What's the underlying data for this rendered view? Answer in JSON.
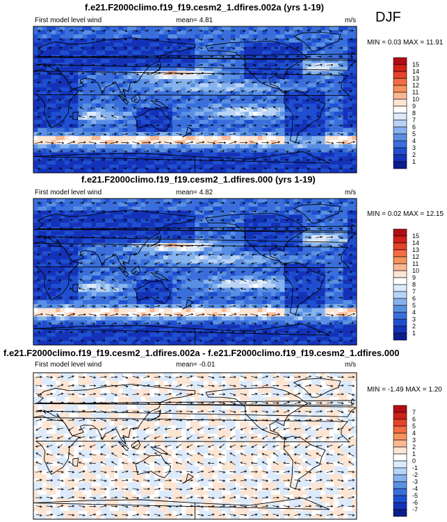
{
  "season": "DJF",
  "panels": [
    {
      "title": "f.e21.F2000climo.f19_f19.cesm2_1.dfires.002a (yrs 1-19)",
      "left_label": "First model level wind",
      "mean_text": "mean=   4.81",
      "units": "m/s",
      "minmax_text": "MIN =   0.03 MAX =  11.91",
      "field": "wind",
      "colorbar": {
        "labels": [
          "15",
          "14",
          "13",
          "12",
          "11",
          "10",
          "9",
          "8",
          "7",
          "6",
          "5",
          "4",
          "3",
          "2",
          "1"
        ],
        "colors": [
          "#b30d14",
          "#cf2116",
          "#e4432c",
          "#f46d43",
          "#f6925c",
          "#f9b995",
          "#fde5d4",
          "#ffffff",
          "#dceafb",
          "#b9d3f6",
          "#86b3ee",
          "#5a90e4",
          "#3a6fdb",
          "#1f4fd0",
          "#1432b8",
          "#0b1d8c"
        ]
      },
      "chart_data": {
        "type": "heatmap",
        "variable": "First model level wind",
        "units": "m/s",
        "mean": 4.81,
        "min": 0.03,
        "max": 11.91,
        "color_levels": [
          1,
          2,
          3,
          4,
          5,
          6,
          7,
          8,
          9,
          10,
          11,
          12,
          13,
          14,
          15
        ]
      }
    },
    {
      "title": "f.e21.F2000climo.f19_f19.cesm2_1.dfires.000 (yrs 1-19)",
      "left_label": "First model level wind",
      "mean_text": "mean=   4.82",
      "units": "m/s",
      "minmax_text": "MIN =   0.02 MAX =  12.15",
      "field": "wind",
      "colorbar": {
        "labels": [
          "15",
          "14",
          "13",
          "12",
          "11",
          "10",
          "9",
          "8",
          "7",
          "6",
          "5",
          "4",
          "3",
          "2",
          "1"
        ],
        "colors": [
          "#b30d14",
          "#cf2116",
          "#e4432c",
          "#f46d43",
          "#f6925c",
          "#f9b995",
          "#fde5d4",
          "#ffffff",
          "#dceafb",
          "#b9d3f6",
          "#86b3ee",
          "#5a90e4",
          "#3a6fdb",
          "#1f4fd0",
          "#1432b8",
          "#0b1d8c"
        ]
      },
      "chart_data": {
        "type": "heatmap",
        "variable": "First model level wind",
        "units": "m/s",
        "mean": 4.82,
        "min": 0.02,
        "max": 12.15,
        "color_levels": [
          1,
          2,
          3,
          4,
          5,
          6,
          7,
          8,
          9,
          10,
          11,
          12,
          13,
          14,
          15
        ]
      }
    },
    {
      "title": "f.e21.F2000climo.f19_f19.cesm2_1.dfires.002a - f.e21.F2000climo.f19_f19.cesm2_1.dfires.000",
      "left_label": "First model level wind",
      "mean_text": "mean=   -0.01",
      "units": "m/s",
      "minmax_text": "MIN =  -1.49 MAX =   1.20",
      "field": "diff",
      "colorbar": {
        "labels": [
          "7",
          "6",
          "5",
          "4",
          "3",
          "2",
          "1",
          "0",
          "-1",
          "-2",
          "-3",
          "-4",
          "-5",
          "-6",
          "-7"
        ],
        "colors": [
          "#b30d14",
          "#cf2116",
          "#e4432c",
          "#f46d43",
          "#f6925c",
          "#f9b995",
          "#fde5d4",
          "#ffffff",
          "#dceafb",
          "#b9d3f6",
          "#86b3ee",
          "#5a90e4",
          "#3a6fdb",
          "#1f4fd0",
          "#1432b8",
          "#0b1d8c"
        ]
      },
      "chart_data": {
        "type": "heatmap",
        "variable": "First model level wind",
        "units": "m/s",
        "mean": -0.01,
        "min": -1.49,
        "max": 1.2,
        "color_levels": [
          -7,
          -6,
          -5,
          -4,
          -3,
          -2,
          -1,
          0,
          1,
          2,
          3,
          4,
          5,
          6,
          7
        ]
      }
    }
  ]
}
